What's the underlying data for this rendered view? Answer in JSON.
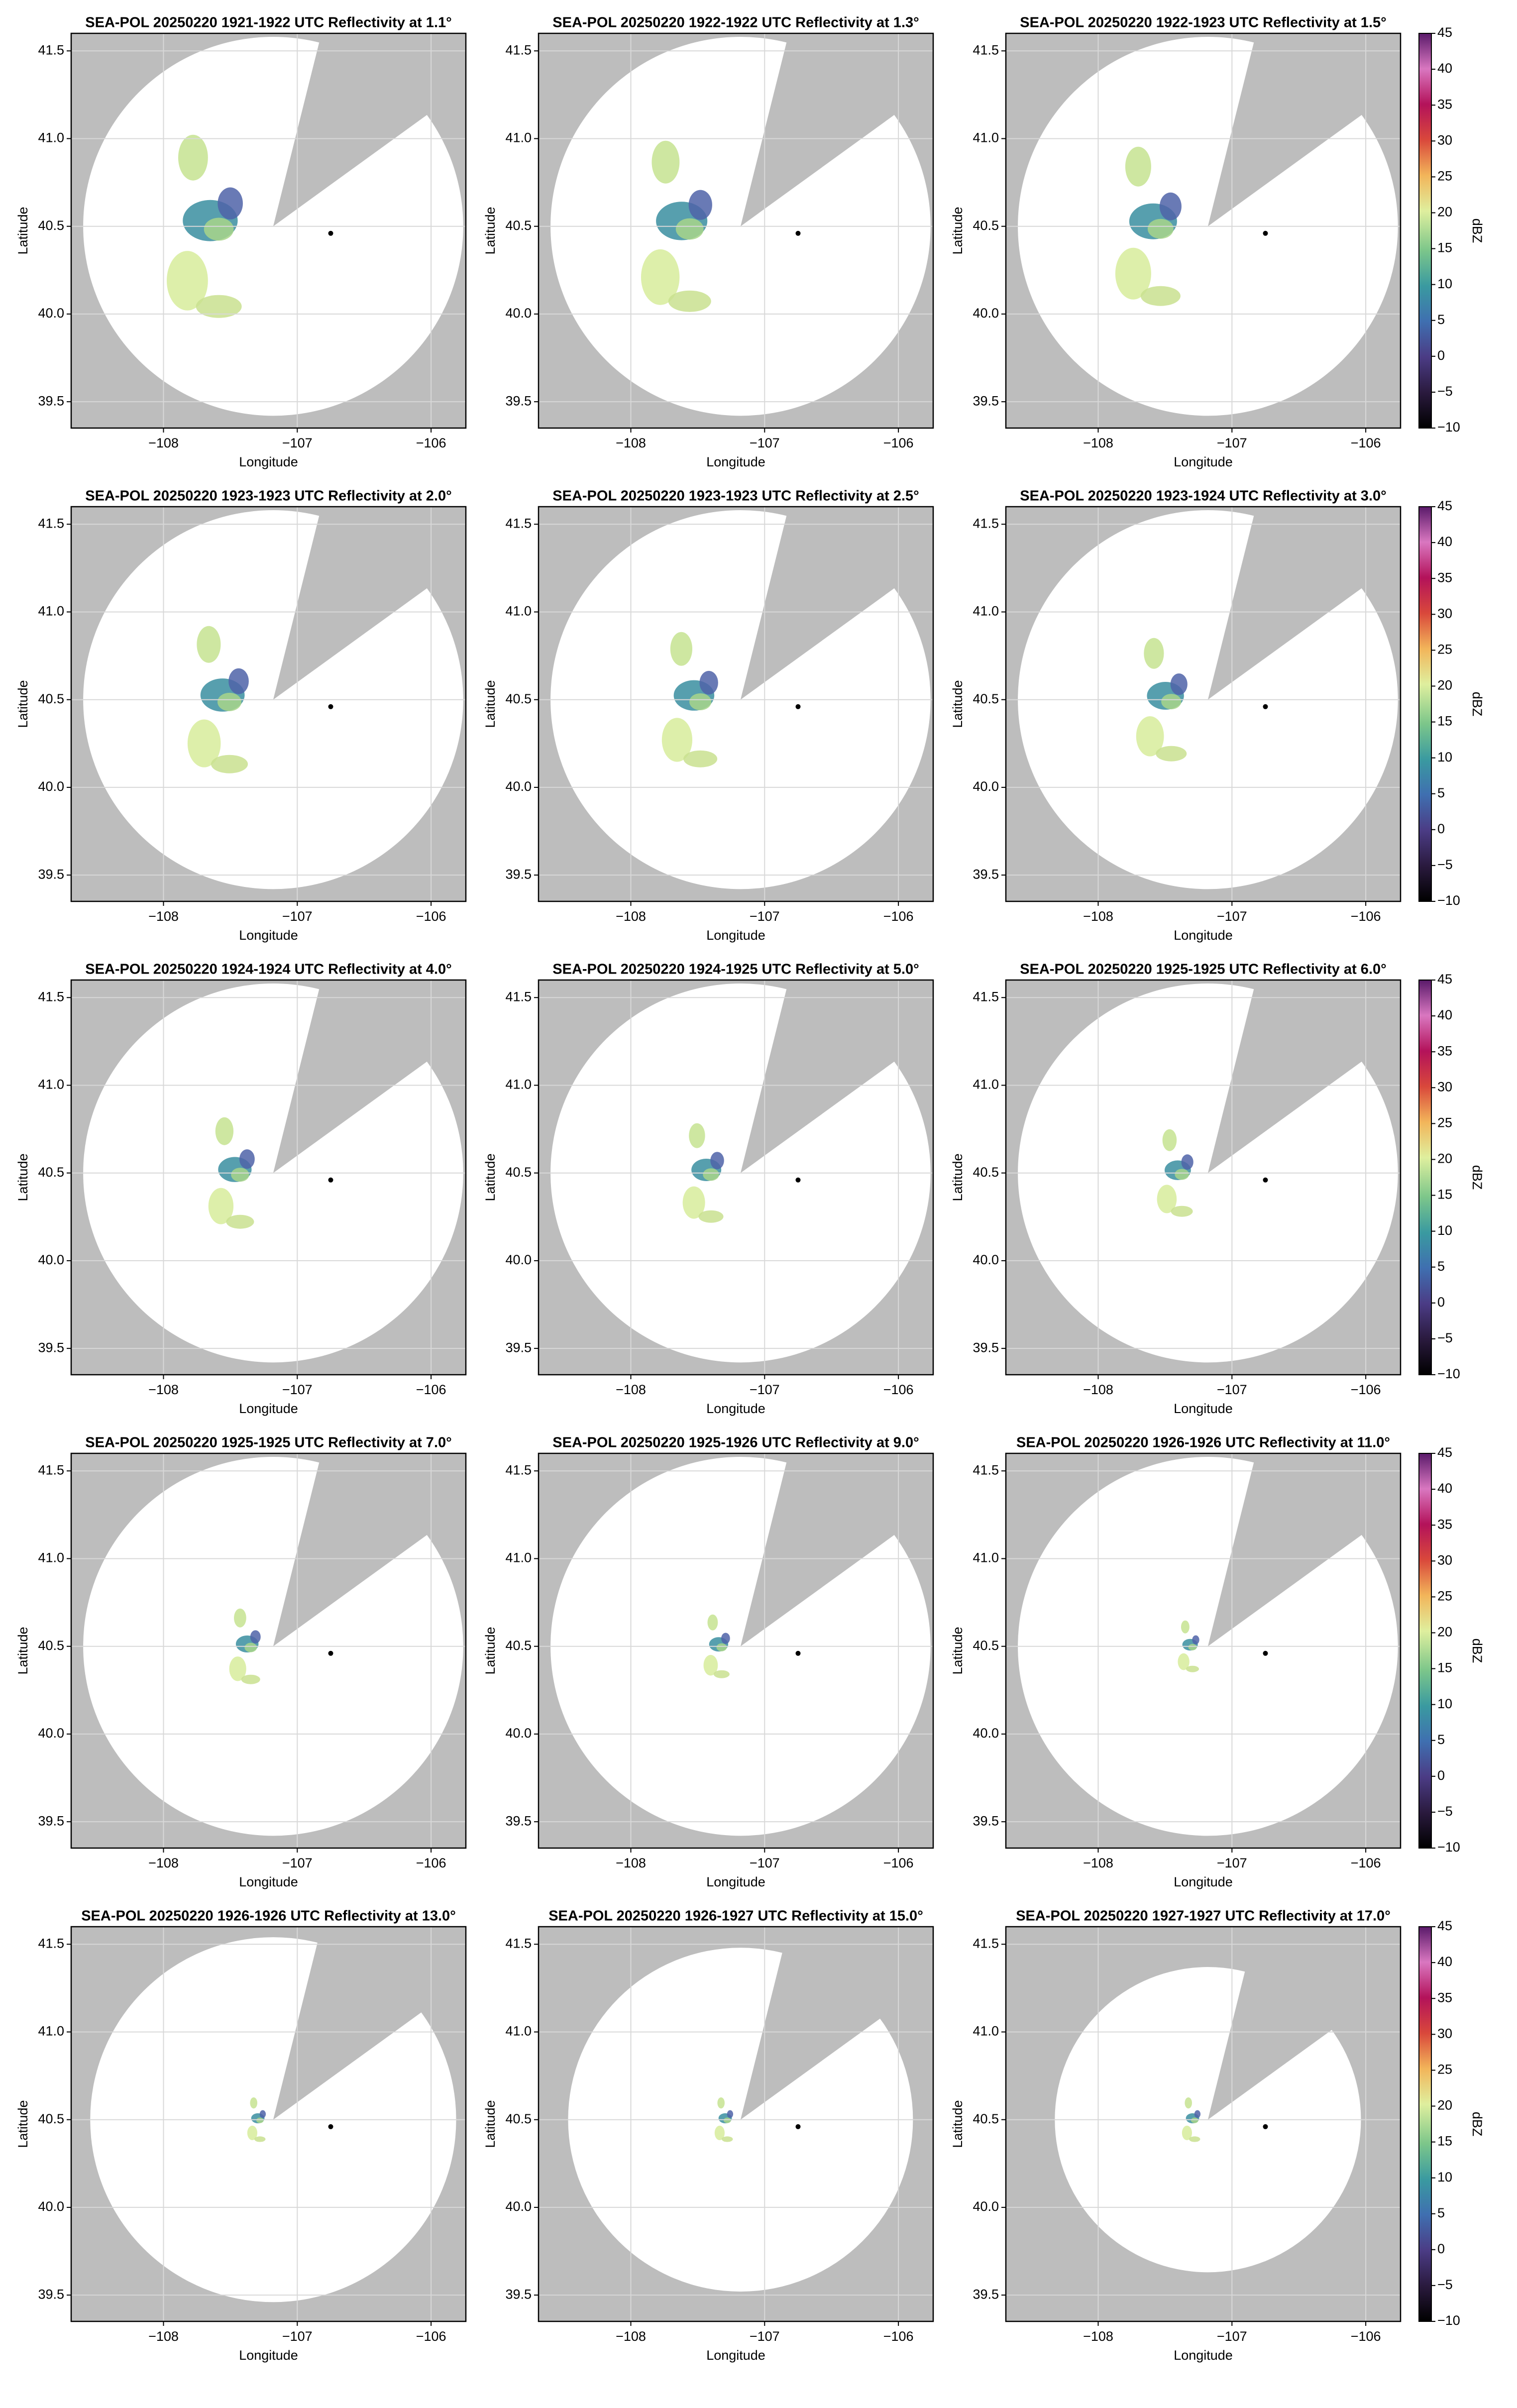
{
  "chart_data": [
    {
      "type": "ppi",
      "title": "SEA-POL 20250220 1921-1922 UTC Reflectivity at 1.1°",
      "xlabel": "Longitude",
      "ylabel": "Latitude",
      "xlim": [
        -108.69,
        -105.74
      ],
      "ylim": [
        39.35,
        41.6
      ],
      "xticks": [
        {
          "value": -108,
          "label": "−108"
        },
        {
          "value": -107,
          "label": "−107"
        },
        {
          "value": -106,
          "label": "−106"
        }
      ],
      "yticks": [
        39.5,
        {
          "value": 40,
          "label": "40.0"
        },
        40.5,
        {
          "value": 41,
          "label": "41.0"
        },
        41.5
      ],
      "grid": true,
      "coverage": {
        "center": [
          -107.18,
          40.5
        ],
        "radius": 1.08,
        "blocked": [
          14,
          54
        ]
      },
      "marker": {
        "x": -106.75,
        "y": 40.46
      }
    },
    {
      "type": "ppi",
      "title": "SEA-POL 20250220 1922-1922 UTC Reflectivity at 1.3°",
      "xlabel": "Longitude",
      "ylabel": "Latitude",
      "xlim": [
        -108.69,
        -105.74
      ],
      "ylim": [
        39.35,
        41.6
      ],
      "xticks": [
        {
          "value": -108,
          "label": "−108"
        },
        {
          "value": -107,
          "label": "−107"
        },
        {
          "value": -106,
          "label": "−106"
        }
      ],
      "yticks": [
        39.5,
        {
          "value": 40,
          "label": "40.0"
        },
        40.5,
        {
          "value": 41,
          "label": "41.0"
        },
        41.5
      ],
      "grid": true,
      "coverage": {
        "center": [
          -107.18,
          40.5
        ],
        "radius": 1.08,
        "blocked": [
          14,
          54
        ]
      },
      "marker": {
        "x": -106.75,
        "y": 40.46
      }
    },
    {
      "type": "ppi",
      "title": "SEA-POL 20250220 1922-1923 UTC Reflectivity at 1.5°",
      "xlabel": "Longitude",
      "ylabel": "Latitude",
      "xlim": [
        -108.69,
        -105.74
      ],
      "ylim": [
        39.35,
        41.6
      ],
      "xticks": [
        {
          "value": -108,
          "label": "−108"
        },
        {
          "value": -107,
          "label": "−107"
        },
        {
          "value": -106,
          "label": "−106"
        }
      ],
      "yticks": [
        39.5,
        {
          "value": 40,
          "label": "40.0"
        },
        40.5,
        {
          "value": 41,
          "label": "41.0"
        },
        41.5
      ],
      "grid": true,
      "coverage": {
        "center": [
          -107.18,
          40.5
        ],
        "radius": 1.08,
        "blocked": [
          14,
          54
        ]
      },
      "marker": {
        "x": -106.75,
        "y": 40.46
      },
      "colorbar": {
        "label": "dBZ",
        "lim": [
          -10,
          45
        ],
        "ticks": [
          {
            "value": -10,
            "label": "−10"
          },
          {
            "value": -5,
            "label": "−5"
          },
          0,
          5,
          10,
          15,
          20,
          25,
          30,
          35,
          40,
          45
        ]
      }
    },
    {
      "type": "ppi",
      "title": "SEA-POL 20250220 1923-1923 UTC Reflectivity at 2.0°",
      "xlabel": "Longitude",
      "ylabel": "Latitude",
      "xlim": [
        -108.69,
        -105.74
      ],
      "ylim": [
        39.35,
        41.6
      ],
      "xticks": [
        {
          "value": -108,
          "label": "−108"
        },
        {
          "value": -107,
          "label": "−107"
        },
        {
          "value": -106,
          "label": "−106"
        }
      ],
      "yticks": [
        39.5,
        {
          "value": 40,
          "label": "40.0"
        },
        40.5,
        {
          "value": 41,
          "label": "41.0"
        },
        41.5
      ],
      "grid": true,
      "coverage": {
        "center": [
          -107.18,
          40.5
        ],
        "radius": 1.08,
        "blocked": [
          14,
          54
        ]
      },
      "marker": {
        "x": -106.75,
        "y": 40.46
      }
    },
    {
      "type": "ppi",
      "title": "SEA-POL 20250220 1923-1923 UTC Reflectivity at 2.5°",
      "xlabel": "Longitude",
      "ylabel": "Latitude",
      "xlim": [
        -108.69,
        -105.74
      ],
      "ylim": [
        39.35,
        41.6
      ],
      "xticks": [
        {
          "value": -108,
          "label": "−108"
        },
        {
          "value": -107,
          "label": "−107"
        },
        {
          "value": -106,
          "label": "−106"
        }
      ],
      "yticks": [
        39.5,
        {
          "value": 40,
          "label": "40.0"
        },
        40.5,
        {
          "value": 41,
          "label": "41.0"
        },
        41.5
      ],
      "grid": true,
      "coverage": {
        "center": [
          -107.18,
          40.5
        ],
        "radius": 1.08,
        "blocked": [
          14,
          54
        ]
      },
      "marker": {
        "x": -106.75,
        "y": 40.46
      }
    },
    {
      "type": "ppi",
      "title": "SEA-POL 20250220 1923-1924 UTC Reflectivity at 3.0°",
      "xlabel": "Longitude",
      "ylabel": "Latitude",
      "xlim": [
        -108.69,
        -105.74
      ],
      "ylim": [
        39.35,
        41.6
      ],
      "xticks": [
        {
          "value": -108,
          "label": "−108"
        },
        {
          "value": -107,
          "label": "−107"
        },
        {
          "value": -106,
          "label": "−106"
        }
      ],
      "yticks": [
        39.5,
        {
          "value": 40,
          "label": "40.0"
        },
        40.5,
        {
          "value": 41,
          "label": "41.0"
        },
        41.5
      ],
      "grid": true,
      "coverage": {
        "center": [
          -107.18,
          40.5
        ],
        "radius": 1.08,
        "blocked": [
          14,
          54
        ]
      },
      "marker": {
        "x": -106.75,
        "y": 40.46
      },
      "colorbar": {
        "label": "dBZ",
        "lim": [
          -10,
          45
        ],
        "ticks": [
          {
            "value": -10,
            "label": "−10"
          },
          {
            "value": -5,
            "label": "−5"
          },
          0,
          5,
          10,
          15,
          20,
          25,
          30,
          35,
          40,
          45
        ]
      }
    },
    {
      "type": "ppi",
      "title": "SEA-POL 20250220 1924-1924 UTC Reflectivity at 4.0°",
      "xlabel": "Longitude",
      "ylabel": "Latitude",
      "xlim": [
        -108.69,
        -105.74
      ],
      "ylim": [
        39.35,
        41.6
      ],
      "xticks": [
        {
          "value": -108,
          "label": "−108"
        },
        {
          "value": -107,
          "label": "−107"
        },
        {
          "value": -106,
          "label": "−106"
        }
      ],
      "yticks": [
        39.5,
        {
          "value": 40,
          "label": "40.0"
        },
        40.5,
        {
          "value": 41,
          "label": "41.0"
        },
        41.5
      ],
      "grid": true,
      "coverage": {
        "center": [
          -107.18,
          40.5
        ],
        "radius": 1.08,
        "blocked": [
          14,
          54
        ]
      },
      "marker": {
        "x": -106.75,
        "y": 40.46
      }
    },
    {
      "type": "ppi",
      "title": "SEA-POL 20250220 1924-1925 UTC Reflectivity at 5.0°",
      "xlabel": "Longitude",
      "ylabel": "Latitude",
      "xlim": [
        -108.69,
        -105.74
      ],
      "ylim": [
        39.35,
        41.6
      ],
      "xticks": [
        {
          "value": -108,
          "label": "−108"
        },
        {
          "value": -107,
          "label": "−107"
        },
        {
          "value": -106,
          "label": "−106"
        }
      ],
      "yticks": [
        39.5,
        {
          "value": 40,
          "label": "40.0"
        },
        40.5,
        {
          "value": 41,
          "label": "41.0"
        },
        41.5
      ],
      "grid": true,
      "coverage": {
        "center": [
          -107.18,
          40.5
        ],
        "radius": 1.08,
        "blocked": [
          14,
          54
        ]
      },
      "marker": {
        "x": -106.75,
        "y": 40.46
      }
    },
    {
      "type": "ppi",
      "title": "SEA-POL 20250220 1925-1925 UTC Reflectivity at 6.0°",
      "xlabel": "Longitude",
      "ylabel": "Latitude",
      "xlim": [
        -108.69,
        -105.74
      ],
      "ylim": [
        39.35,
        41.6
      ],
      "xticks": [
        {
          "value": -108,
          "label": "−108"
        },
        {
          "value": -107,
          "label": "−107"
        },
        {
          "value": -106,
          "label": "−106"
        }
      ],
      "yticks": [
        39.5,
        {
          "value": 40,
          "label": "40.0"
        },
        40.5,
        {
          "value": 41,
          "label": "41.0"
        },
        41.5
      ],
      "grid": true,
      "coverage": {
        "center": [
          -107.18,
          40.5
        ],
        "radius": 1.08,
        "blocked": [
          14,
          54
        ]
      },
      "marker": {
        "x": -106.75,
        "y": 40.46
      },
      "colorbar": {
        "label": "dBZ",
        "lim": [
          -10,
          45
        ],
        "ticks": [
          {
            "value": -10,
            "label": "−10"
          },
          {
            "value": -5,
            "label": "−5"
          },
          0,
          5,
          10,
          15,
          20,
          25,
          30,
          35,
          40,
          45
        ]
      }
    },
    {
      "type": "ppi",
      "title": "SEA-POL 20250220 1925-1925 UTC Reflectivity at 7.0°",
      "xlabel": "Longitude",
      "ylabel": "Latitude",
      "xlim": [
        -108.69,
        -105.74
      ],
      "ylim": [
        39.35,
        41.6
      ],
      "xticks": [
        {
          "value": -108,
          "label": "−108"
        },
        {
          "value": -107,
          "label": "−107"
        },
        {
          "value": -106,
          "label": "−106"
        }
      ],
      "yticks": [
        39.5,
        {
          "value": 40,
          "label": "40.0"
        },
        40.5,
        {
          "value": 41,
          "label": "41.0"
        },
        41.5
      ],
      "grid": true,
      "coverage": {
        "center": [
          -107.18,
          40.5
        ],
        "radius": 1.08,
        "blocked": [
          14,
          54
        ]
      },
      "marker": {
        "x": -106.75,
        "y": 40.46
      }
    },
    {
      "type": "ppi",
      "title": "SEA-POL 20250220 1925-1926 UTC Reflectivity at 9.0°",
      "xlabel": "Longitude",
      "ylabel": "Latitude",
      "xlim": [
        -108.69,
        -105.74
      ],
      "ylim": [
        39.35,
        41.6
      ],
      "xticks": [
        {
          "value": -108,
          "label": "−108"
        },
        {
          "value": -107,
          "label": "−107"
        },
        {
          "value": -106,
          "label": "−106"
        }
      ],
      "yticks": [
        39.5,
        {
          "value": 40,
          "label": "40.0"
        },
        40.5,
        {
          "value": 41,
          "label": "41.0"
        },
        41.5
      ],
      "grid": true,
      "coverage": {
        "center": [
          -107.18,
          40.5
        ],
        "radius": 1.08,
        "blocked": [
          14,
          54
        ]
      },
      "marker": {
        "x": -106.75,
        "y": 40.46
      }
    },
    {
      "type": "ppi",
      "title": "SEA-POL 20250220 1926-1926 UTC Reflectivity at 11.0°",
      "xlabel": "Longitude",
      "ylabel": "Latitude",
      "xlim": [
        -108.69,
        -105.74
      ],
      "ylim": [
        39.35,
        41.6
      ],
      "xticks": [
        {
          "value": -108,
          "label": "−108"
        },
        {
          "value": -107,
          "label": "−107"
        },
        {
          "value": -106,
          "label": "−106"
        }
      ],
      "yticks": [
        39.5,
        {
          "value": 40,
          "label": "40.0"
        },
        40.5,
        {
          "value": 41,
          "label": "41.0"
        },
        41.5
      ],
      "grid": true,
      "coverage": {
        "center": [
          -107.18,
          40.5
        ],
        "radius": 1.08,
        "blocked": [
          14,
          54
        ]
      },
      "marker": {
        "x": -106.75,
        "y": 40.46
      },
      "colorbar": {
        "label": "dBZ",
        "lim": [
          -10,
          45
        ],
        "ticks": [
          {
            "value": -10,
            "label": "−10"
          },
          {
            "value": -5,
            "label": "−5"
          },
          0,
          5,
          10,
          15,
          20,
          25,
          30,
          35,
          40,
          45
        ]
      }
    },
    {
      "type": "ppi",
      "title": "SEA-POL 20250220 1926-1926 UTC Reflectivity at 13.0°",
      "xlabel": "Longitude",
      "ylabel": "Latitude",
      "xlim": [
        -108.69,
        -105.74
      ],
      "ylim": [
        39.35,
        41.6
      ],
      "xticks": [
        {
          "value": -108,
          "label": "−108"
        },
        {
          "value": -107,
          "label": "−107"
        },
        {
          "value": -106,
          "label": "−106"
        }
      ],
      "yticks": [
        39.5,
        {
          "value": 40,
          "label": "40.0"
        },
        40.5,
        {
          "value": 41,
          "label": "41.0"
        },
        41.5
      ],
      "grid": true,
      "coverage": {
        "center": [
          -107.18,
          40.5
        ],
        "radius": 1.04,
        "blocked": [
          14,
          54
        ]
      },
      "marker": {
        "x": -106.75,
        "y": 40.46
      }
    },
    {
      "type": "ppi",
      "title": "SEA-POL 20250220 1926-1927 UTC Reflectivity at 15.0°",
      "xlabel": "Longitude",
      "ylabel": "Latitude",
      "xlim": [
        -108.69,
        -105.74
      ],
      "ylim": [
        39.35,
        41.6
      ],
      "xticks": [
        {
          "value": -108,
          "label": "−108"
        },
        {
          "value": -107,
          "label": "−107"
        },
        {
          "value": -106,
          "label": "−106"
        }
      ],
      "yticks": [
        39.5,
        {
          "value": 40,
          "label": "40.0"
        },
        40.5,
        {
          "value": 41,
          "label": "41.0"
        },
        41.5
      ],
      "grid": true,
      "coverage": {
        "center": [
          -107.18,
          40.5
        ],
        "radius": 0.98,
        "blocked": [
          14,
          54
        ]
      },
      "marker": {
        "x": -106.75,
        "y": 40.46
      }
    },
    {
      "type": "ppi",
      "title": "SEA-POL 20250220 1927-1927 UTC Reflectivity at 17.0°",
      "xlabel": "Longitude",
      "ylabel": "Latitude",
      "xlim": [
        -108.69,
        -105.74
      ],
      "ylim": [
        39.35,
        41.6
      ],
      "xticks": [
        {
          "value": -108,
          "label": "−108"
        },
        {
          "value": -107,
          "label": "−107"
        },
        {
          "value": -106,
          "label": "−106"
        }
      ],
      "yticks": [
        39.5,
        {
          "value": 40,
          "label": "40.0"
        },
        40.5,
        {
          "value": 41,
          "label": "41.0"
        },
        41.5
      ],
      "grid": true,
      "coverage": {
        "center": [
          -107.18,
          40.5
        ],
        "radius": 0.87,
        "blocked": [
          14,
          54
        ]
      },
      "marker": {
        "x": -106.75,
        "y": 40.46
      },
      "colorbar": {
        "label": "dBZ",
        "lim": [
          -10,
          45
        ],
        "ticks": [
          {
            "value": -10,
            "label": "−10"
          },
          {
            "value": -5,
            "label": "−5"
          },
          0,
          5,
          10,
          15,
          20,
          25,
          30,
          35,
          40,
          45
        ]
      }
    }
  ]
}
